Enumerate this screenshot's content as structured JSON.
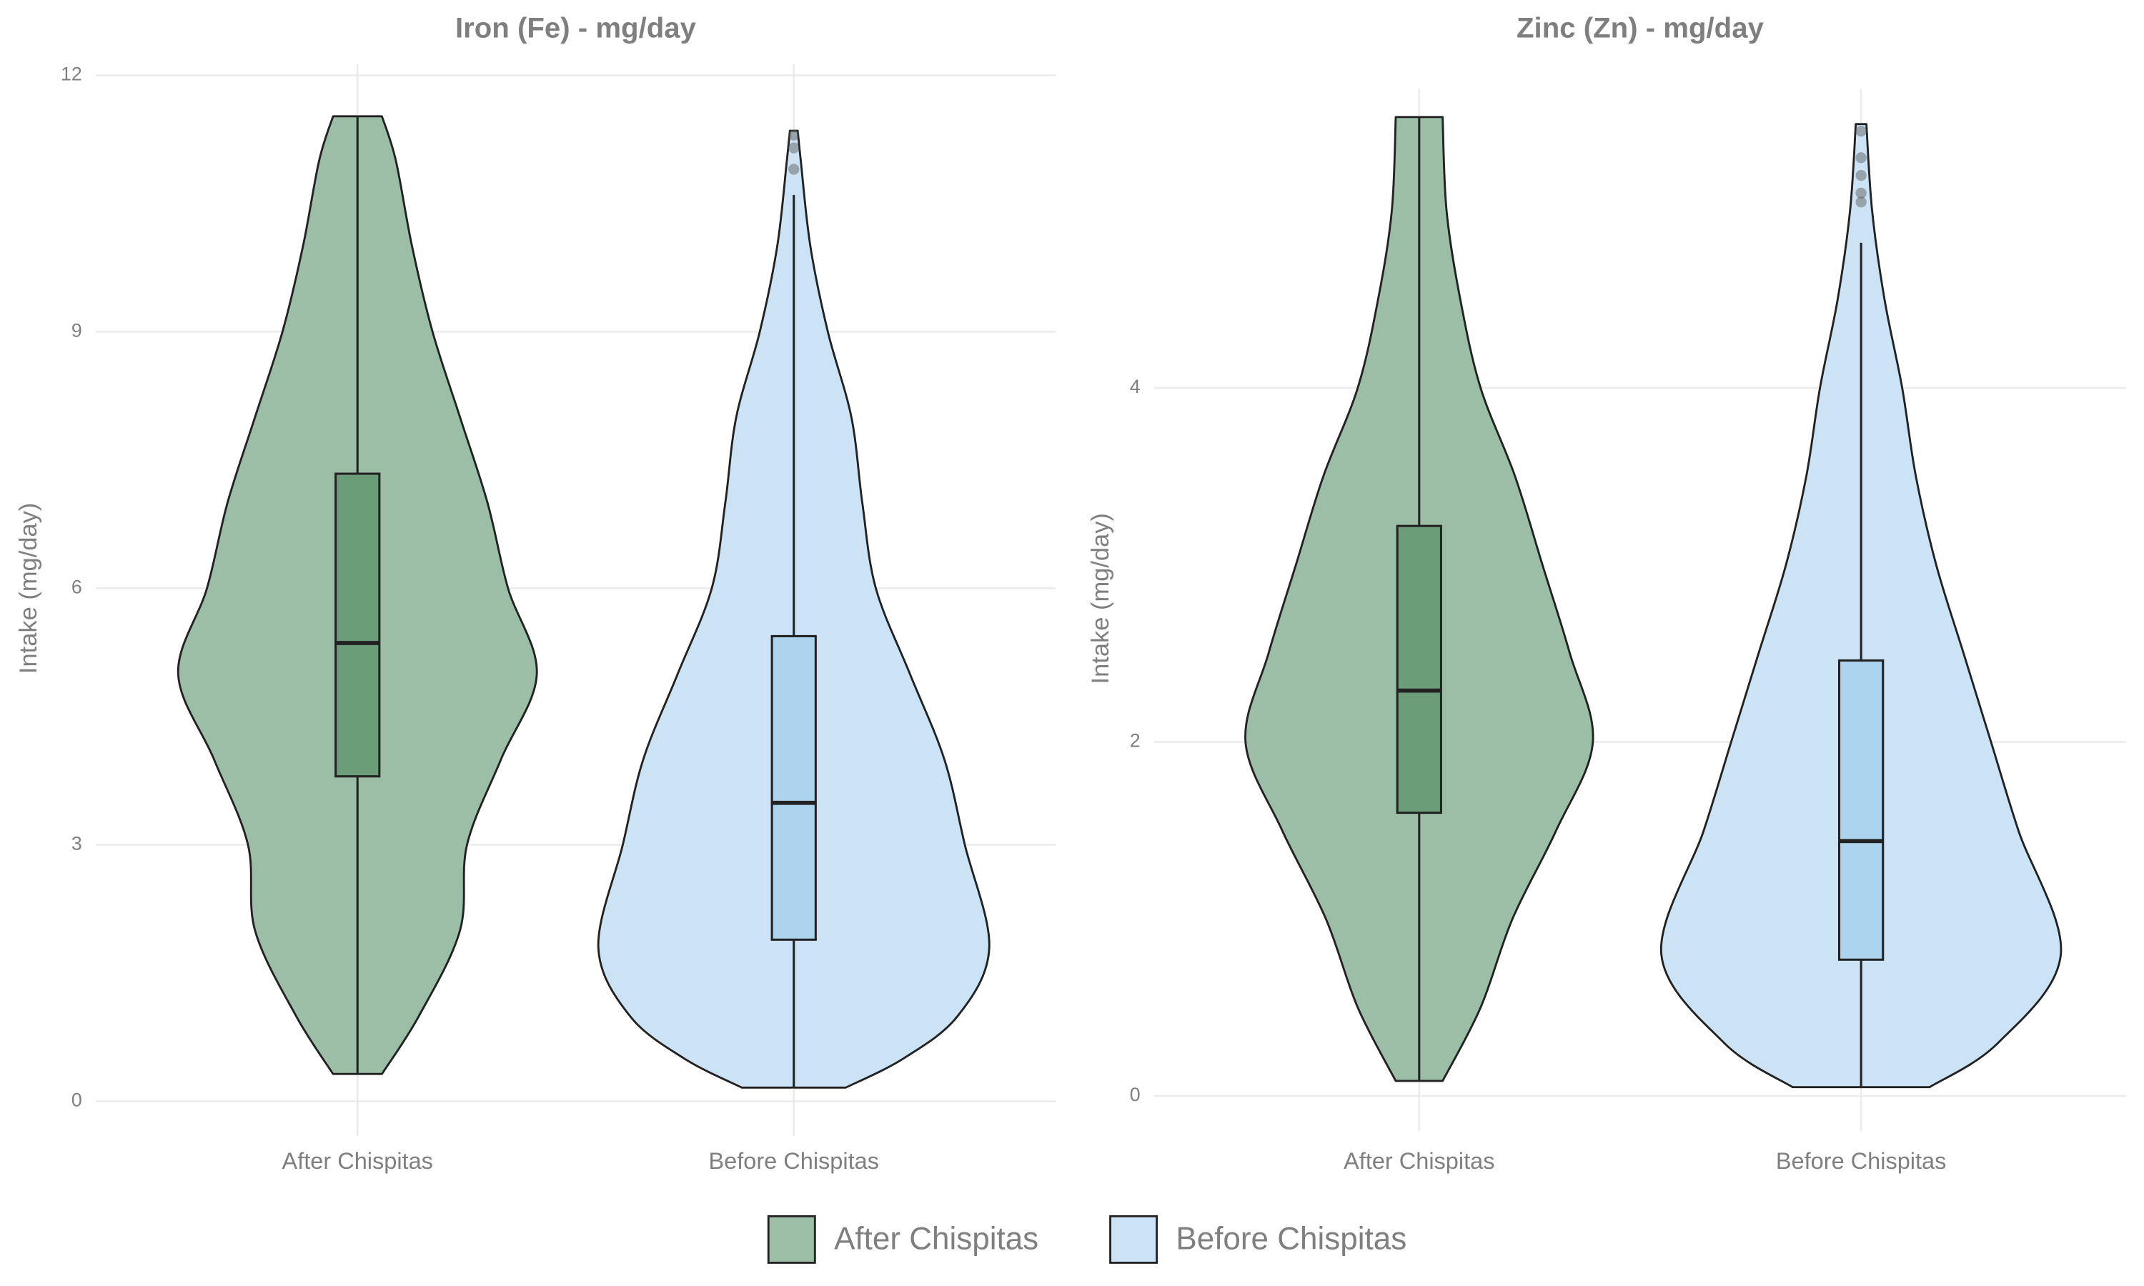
{
  "chart_data": [
    {
      "type": "violin",
      "title": "Iron (Fe) - mg/day",
      "y_label": "Intake (mg/day)",
      "categories": [
        "After Chispitas",
        "Before Chispitas"
      ],
      "ylim": [
        -0.4,
        12.4
      ],
      "yticks": [
        0,
        3,
        6,
        9,
        12
      ],
      "grid": true,
      "series": [
        {
          "color": "#9dbea6",
          "box_color": "#6a9d78",
          "box": {
            "min": 0.32,
            "q1": 3.8,
            "median": 5.36,
            "q3": 7.34,
            "max": 11.52
          },
          "outliers": [],
          "violin": {
            "y": [
              0.32,
              1,
              2,
              3,
              4,
              5,
              6,
              7,
              8,
              9,
              10,
              11,
              11.52
            ],
            "width": [
              0.056,
              0.141,
              0.235,
              0.251,
              0.329,
              0.411,
              0.345,
              0.298,
              0.235,
              0.172,
              0.125,
              0.088,
              0.056
            ]
          }
        },
        {
          "color": "#cce3f5",
          "box_color": "#acd4ee",
          "box": {
            "min": 0.16,
            "q1": 1.89,
            "median": 3.49,
            "q3": 5.44,
            "max": 10.6
          },
          "outliers": [
            10.9,
            11.15,
            11.3
          ],
          "violin": {
            "y": [
              0.16,
              0.5,
              1,
              1.8,
              3,
              4,
              5,
              6,
              7,
              8,
              9,
              10,
              11,
              11.35
            ],
            "width": [
              0.119,
              0.251,
              0.376,
              0.448,
              0.392,
              0.345,
              0.266,
              0.188,
              0.157,
              0.132,
              0.078,
              0.038,
              0.016,
              0.009
            ]
          }
        }
      ]
    },
    {
      "type": "violin",
      "title": "Zinc (Zn) - mg/day",
      "y_label": "Intake (mg/day)",
      "categories": [
        "After Chispitas",
        "Before Chispitas"
      ],
      "ylim": [
        -0.2,
        5.82
      ],
      "yticks": [
        0,
        2,
        4
      ],
      "grid": true,
      "series": [
        {
          "color": "#9dbea6",
          "box_color": "#6a9d78",
          "box": {
            "min": 0.085,
            "q1": 1.6,
            "median": 2.29,
            "q3": 3.22,
            "max": 5.53
          },
          "outliers": [],
          "violin": {
            "y": [
              0.085,
              0.5,
              1,
              1.5,
              2,
              2.5,
              3,
              3.5,
              4,
              4.5,
              5,
              5.53
            ],
            "width": [
              0.053,
              0.139,
              0.211,
              0.31,
              0.393,
              0.341,
              0.279,
              0.217,
              0.139,
              0.093,
              0.062,
              0.053
            ]
          }
        },
        {
          "color": "#cce3f5",
          "box_color": "#acd4ee",
          "box": {
            "min": 0.05,
            "q1": 0.77,
            "median": 1.44,
            "q3": 2.46,
            "max": 4.82
          },
          "outliers": [
            5.05,
            5.1,
            5.2,
            5.3,
            5.45
          ],
          "violin": {
            "y": [
              0.05,
              0.3,
              0.8,
              1.5,
              2,
              2.5,
              3,
              3.5,
              4,
              4.5,
              5,
              5.49
            ],
            "width": [
              0.155,
              0.31,
              0.452,
              0.356,
              0.294,
              0.232,
              0.17,
              0.124,
              0.093,
              0.053,
              0.025,
              0.012
            ]
          }
        }
      ]
    }
  ]
}
